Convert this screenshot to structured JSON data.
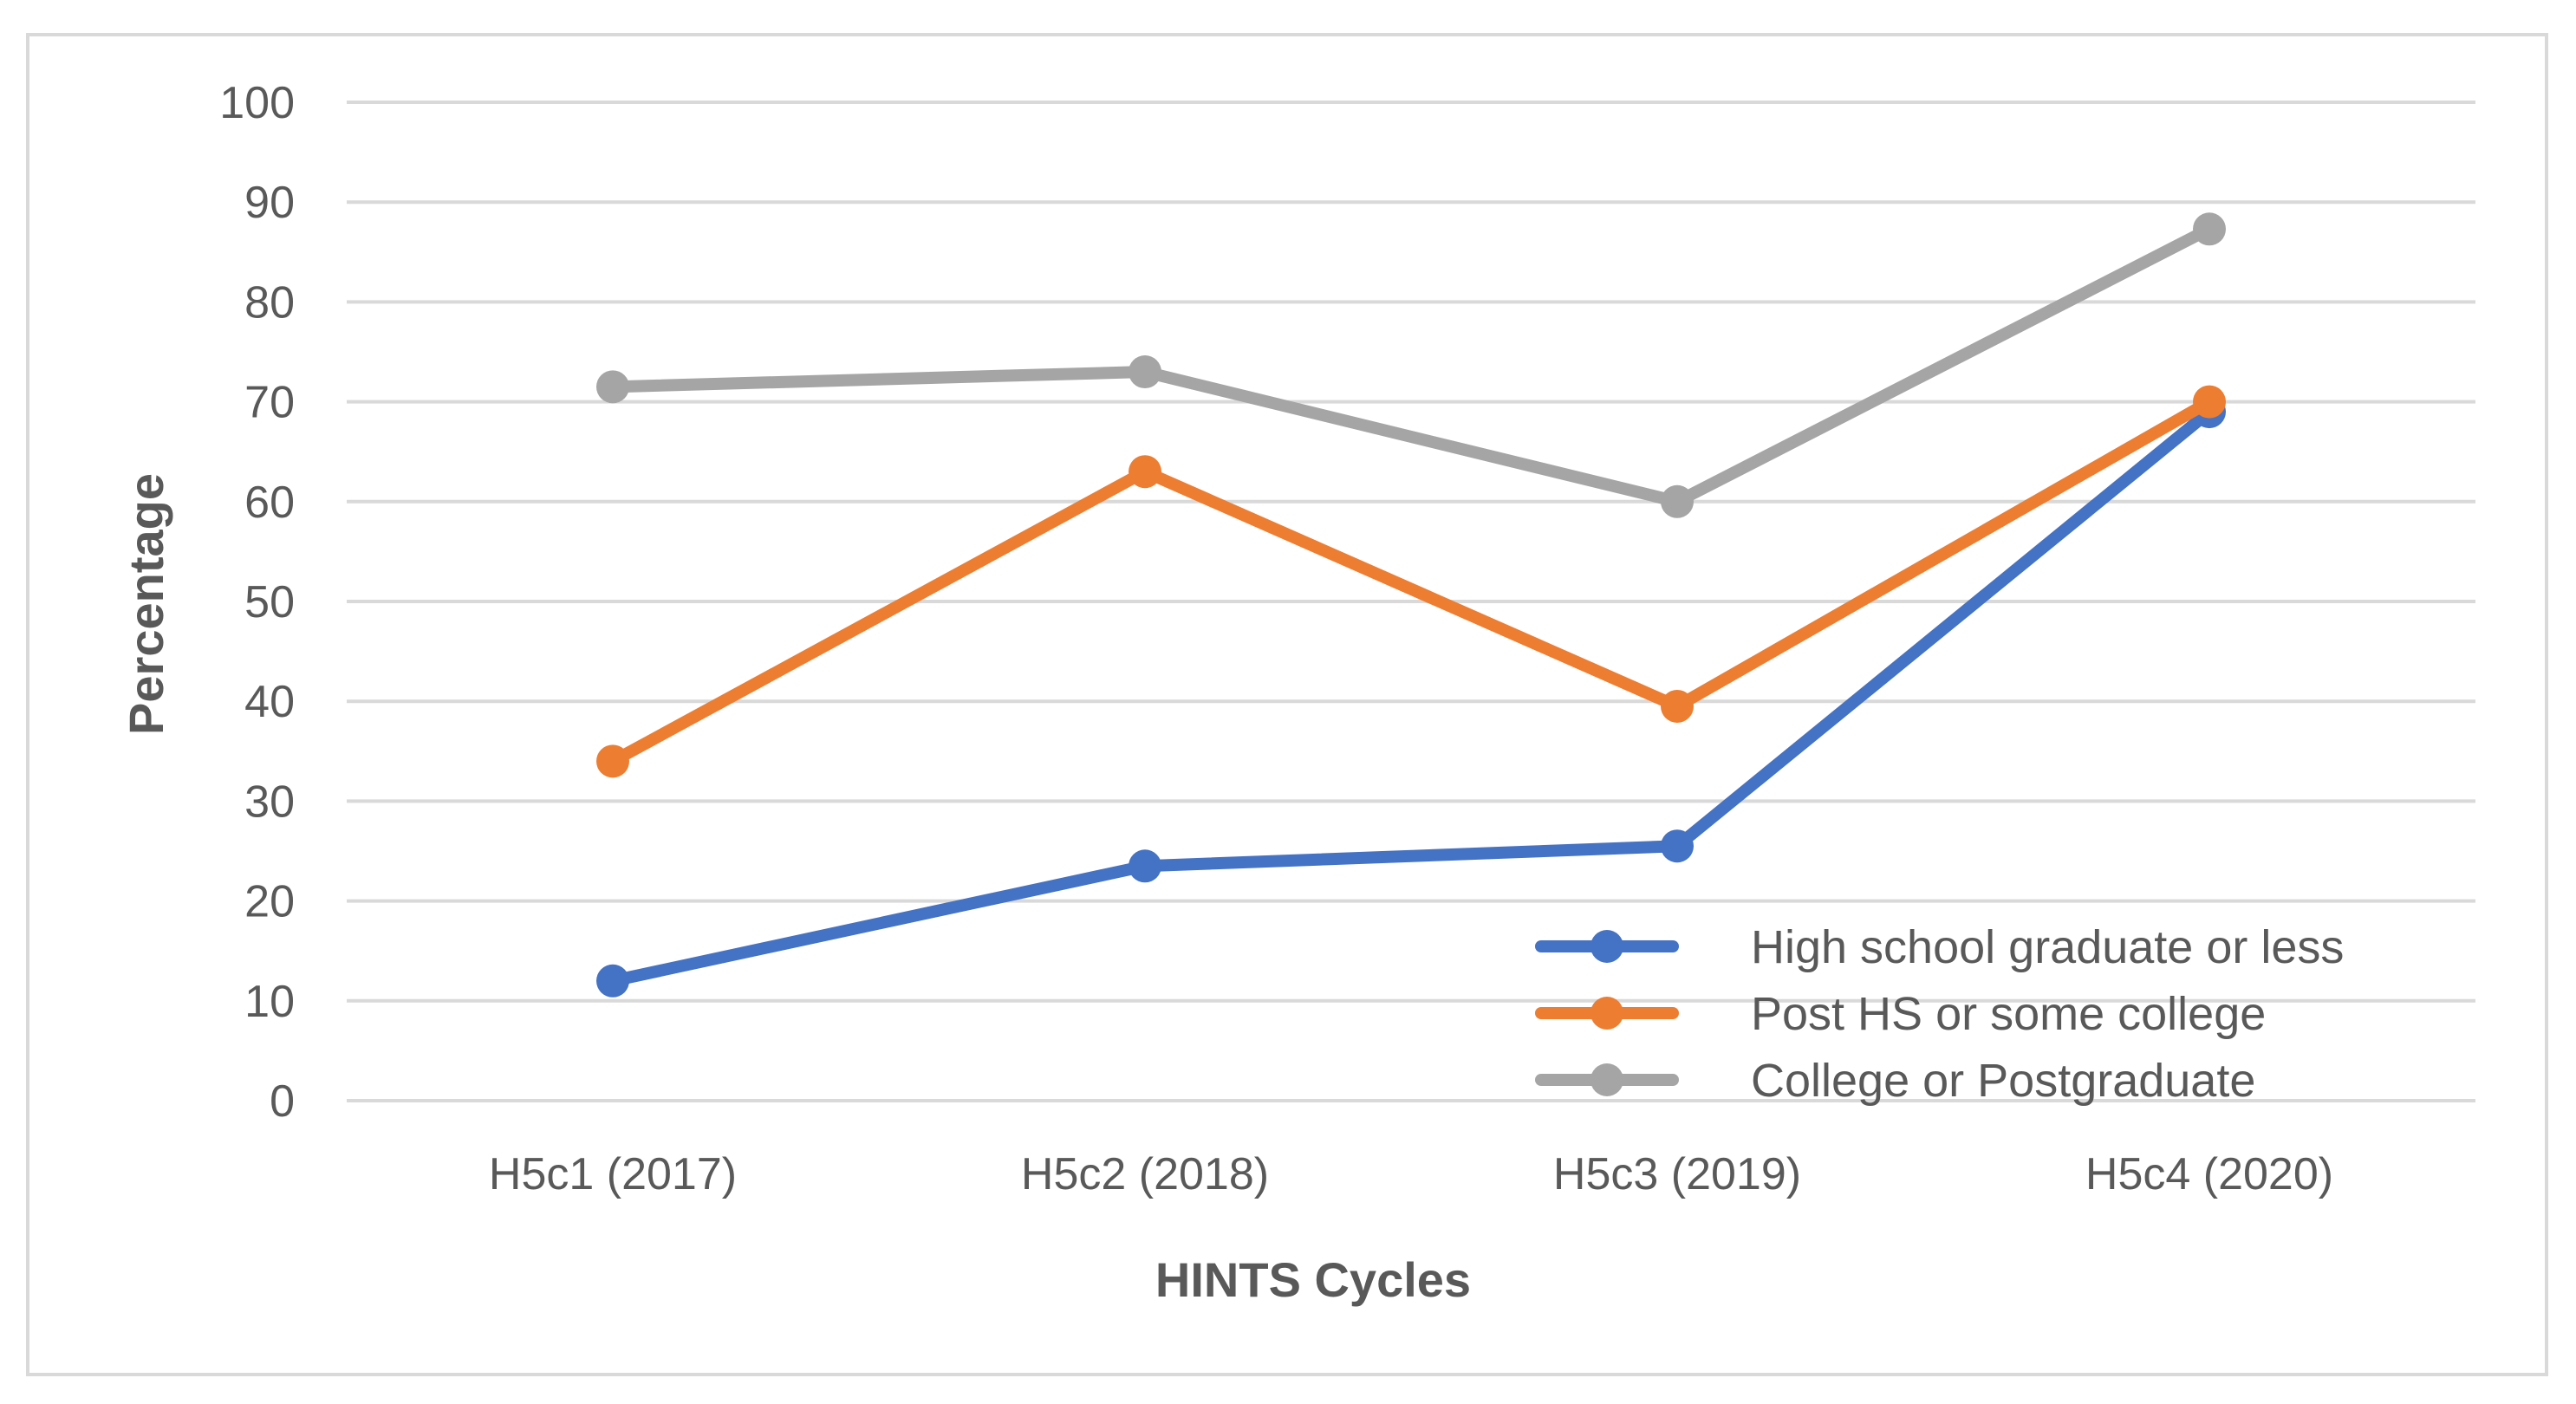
{
  "chart_data": {
    "type": "line",
    "title": "",
    "xlabel": "HINTS Cycles",
    "ylabel": "Percentage",
    "categories": [
      "H5c1 (2017)",
      "H5c2 (2018)",
      "H5c3 (2019)",
      "H5c4 (2020)"
    ],
    "ylim": [
      0,
      100
    ],
    "yticks": [
      0,
      10,
      20,
      30,
      40,
      50,
      60,
      70,
      80,
      90,
      100
    ],
    "grid": true,
    "legend_position": "bottom-right",
    "series": [
      {
        "name": "High school graduate or less",
        "color": "#4472C4",
        "values": [
          12,
          23.5,
          25.5,
          69
        ]
      },
      {
        "name": "Post HS or some college",
        "color": "#ED7D31",
        "values": [
          34,
          63,
          39.5,
          70
        ]
      },
      {
        "name": "College or Postgraduate",
        "color": "#A5A5A5",
        "values": [
          71.5,
          73,
          60,
          87.3
        ]
      }
    ]
  }
}
